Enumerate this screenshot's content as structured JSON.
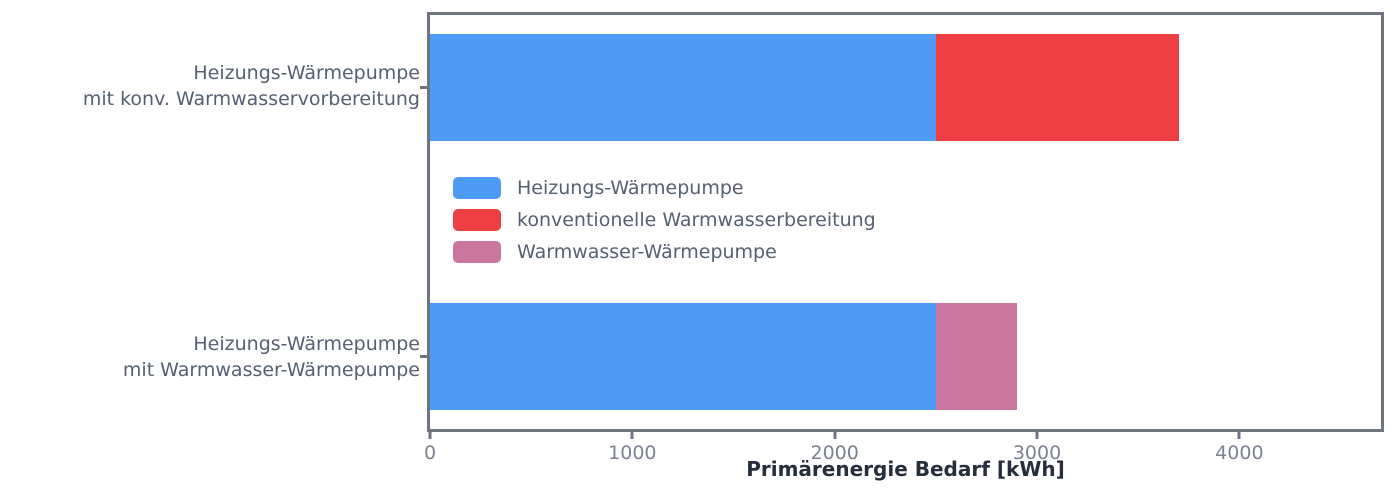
{
  "colors": {
    "spine": "#6e7580",
    "tick_label": "#7b8390",
    "category_label": "#556070",
    "axis_label": "#262e3c",
    "background": "#ffffff",
    "bar_blue": "#4e9af5",
    "bar_red": "#ee4044",
    "bar_pink": "#c9779e"
  },
  "chart_data": {
    "type": "bar",
    "orientation": "horizontal",
    "stacked": true,
    "title": "",
    "xlabel": "Primärenergie Bedarf [kWh]",
    "ylabel": "",
    "xlim": [
      0,
      4700
    ],
    "xticks": [
      "0",
      "1000",
      "2000",
      "3000",
      "4000"
    ],
    "xtick_values": [
      0,
      1000,
      2000,
      3000,
      4000
    ],
    "grid": false,
    "legend_position": "upper left inside plot, below first bar",
    "categories": [
      "Heizungs-Wärmepumpe\nmit konv. Warmwasservorbereitung",
      "Heizungs-Wärmepumpe\nmit Warmwasser-Wärmepumpe"
    ],
    "series": [
      {
        "name": "Heizungs-Wärmepumpe",
        "color": "#4e9af5",
        "values": [
          2500,
          2500
        ]
      },
      {
        "name": "konventionelle Warmwasserbereitung",
        "color": "#ee4044",
        "values": [
          1200,
          0
        ]
      },
      {
        "name": "Warmwasser-Wärmepumpe",
        "color": "#c9779e",
        "values": [
          0,
          400
        ]
      }
    ],
    "totals": [
      3700,
      2900
    ]
  }
}
